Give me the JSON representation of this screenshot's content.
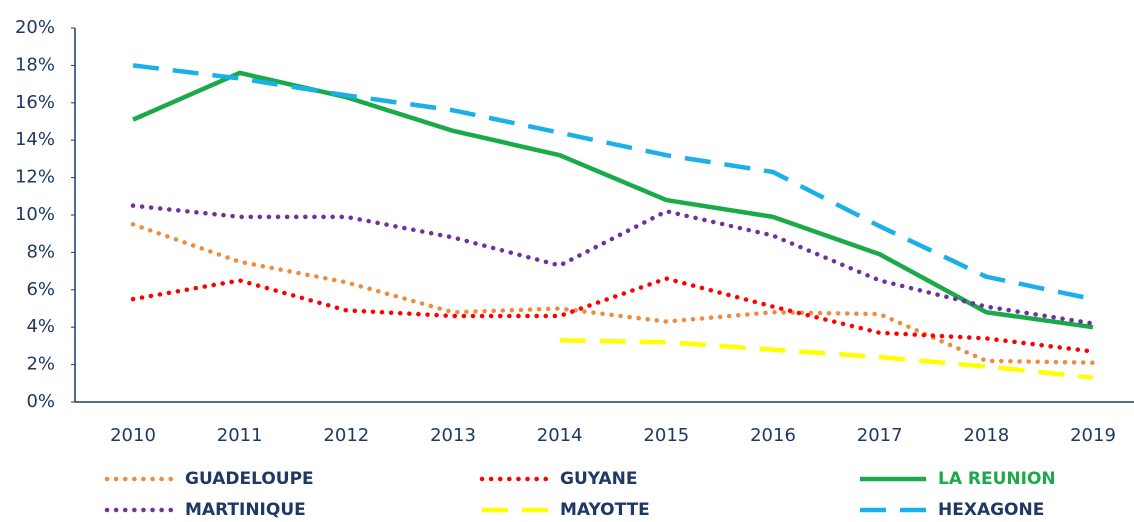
{
  "chart_data": {
    "type": "line",
    "categories": [
      "2010",
      "2011",
      "2012",
      "2013",
      "2014",
      "2015",
      "2016",
      "2017",
      "2018",
      "2019"
    ],
    "ylim": [
      0,
      20
    ],
    "yticks": [
      {
        "value": 0,
        "label": "0%"
      },
      {
        "value": 2,
        "label": "2%"
      },
      {
        "value": 4,
        "label": "4%"
      },
      {
        "value": 6,
        "label": "6%"
      },
      {
        "value": 8,
        "label": "8%"
      },
      {
        "value": 10,
        "label": "10%"
      },
      {
        "value": 12,
        "label": "12%"
      },
      {
        "value": 14,
        "label": "14%"
      },
      {
        "value": 16,
        "label": "16%"
      },
      {
        "value": 18,
        "label": "18%"
      },
      {
        "value": 20,
        "label": "20%"
      }
    ],
    "grid": false,
    "legend": "bottom",
    "series": [
      {
        "name": "GUADELOUPE",
        "color": "#f08a3c",
        "style": "dotted",
        "label_color": "#1f3864",
        "values": [
          9.5,
          7.5,
          6.4,
          4.8,
          5.0,
          4.3,
          4.8,
          4.7,
          2.2,
          2.1
        ]
      },
      {
        "name": "GUYANE",
        "color": "#ff0000",
        "style": "dotted",
        "label_color": "#1f3864",
        "values": [
          5.5,
          6.5,
          4.9,
          4.6,
          4.6,
          6.6,
          5.1,
          3.7,
          3.4,
          2.7
        ]
      },
      {
        "name": "LA REUNION",
        "color": "#1aaa4a",
        "style": "solid",
        "label_color": "#1aaa4a",
        "values": [
          15.1,
          17.6,
          16.3,
          14.5,
          13.2,
          10.8,
          9.9,
          7.9,
          4.8,
          4.0
        ]
      },
      {
        "name": "MARTINIQUE",
        "color": "#7030a0",
        "style": "dotted",
        "label_color": "#1f3864",
        "values": [
          10.5,
          9.9,
          9.9,
          8.8,
          7.3,
          10.2,
          8.9,
          6.5,
          5.1,
          4.2
        ]
      },
      {
        "name": "MAYOTTE",
        "color": "#ffff00",
        "style": "dashed",
        "label_color": "#1f3864",
        "values": [
          null,
          null,
          null,
          null,
          3.3,
          3.2,
          2.8,
          2.4,
          1.9,
          1.3
        ]
      },
      {
        "name": "HEXAGONE",
        "color": "#1ab0e8",
        "style": "dashed",
        "label_color": "#1f3864",
        "values": [
          18.0,
          17.3,
          16.4,
          15.6,
          14.4,
          13.2,
          12.3,
          9.4,
          6.7,
          5.5
        ]
      }
    ]
  }
}
